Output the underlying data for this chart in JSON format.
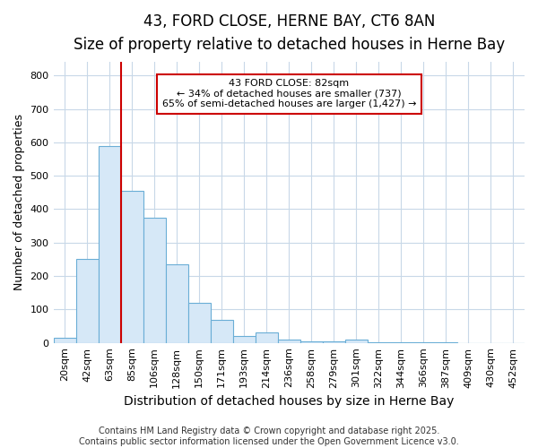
{
  "title": "43, FORD CLOSE, HERNE BAY, CT6 8AN",
  "subtitle": "Size of property relative to detached houses in Herne Bay",
  "xlabel": "Distribution of detached houses by size in Herne Bay",
  "ylabel": "Number of detached properties",
  "bins": [
    "20sqm",
    "42sqm",
    "63sqm",
    "85sqm",
    "106sqm",
    "128sqm",
    "150sqm",
    "171sqm",
    "193sqm",
    "214sqm",
    "236sqm",
    "258sqm",
    "279sqm",
    "301sqm",
    "322sqm",
    "344sqm",
    "366sqm",
    "387sqm",
    "409sqm",
    "430sqm",
    "452sqm"
  ],
  "values": [
    15,
    250,
    590,
    455,
    375,
    235,
    120,
    68,
    20,
    32,
    10,
    5,
    5,
    10,
    2,
    2,
    1,
    1,
    0,
    0,
    0
  ],
  "bar_color": "#d6e8f7",
  "bar_edge_color": "#6aaed6",
  "vline_x_index": 3,
  "vline_color": "#cc0000",
  "annotation_line1": "43 FORD CLOSE: 82sqm",
  "annotation_line2": "← 34% of detached houses are smaller (737)",
  "annotation_line3": "65% of semi-detached houses are larger (1,427) →",
  "annotation_box_facecolor": "#ffffff",
  "annotation_box_edgecolor": "#cc0000",
  "ylim": [
    0,
    840
  ],
  "yticks": [
    0,
    100,
    200,
    300,
    400,
    500,
    600,
    700,
    800
  ],
  "figure_bg": "#ffffff",
  "axes_bg": "#ffffff",
  "grid_color": "#c8d8e8",
  "title_fontsize": 12,
  "subtitle_fontsize": 10,
  "xlabel_fontsize": 10,
  "ylabel_fontsize": 9,
  "tick_fontsize": 8,
  "annotation_fontsize": 8,
  "footer_fontsize": 7,
  "footer1": "Contains HM Land Registry data © Crown copyright and database right 2025.",
  "footer2": "Contains public sector information licensed under the Open Government Licence v3.0."
}
